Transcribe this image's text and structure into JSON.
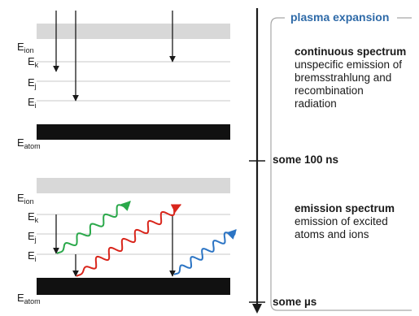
{
  "phase_title": "plasma expansion",
  "timeline": {
    "marker1": "some 100 ns",
    "marker2": "some µs"
  },
  "levels_top": {
    "ion": {
      "main": "E",
      "sub": "ion"
    },
    "k": {
      "main": "E",
      "sub": "k"
    },
    "j": {
      "main": "E",
      "sub": "j"
    },
    "i": {
      "main": "E",
      "sub": "i"
    },
    "atom": {
      "main": "E",
      "sub": "atom"
    }
  },
  "levels_bottom": {
    "ion": {
      "main": "E",
      "sub": "ion"
    },
    "k": {
      "main": "E",
      "sub": "k"
    },
    "j": {
      "main": "E",
      "sub": "j"
    },
    "i": {
      "main": "E",
      "sub": "i"
    },
    "atom": {
      "main": "E",
      "sub": "atom"
    }
  },
  "continuous": {
    "title": "continuous spectrum",
    "lines": [
      "unspecific emission of",
      "bremsstrahlung and",
      "recombination",
      "radiation"
    ]
  },
  "emission": {
    "title": "emission spectrum",
    "lines": [
      "emission  of excited",
      "atoms and ions"
    ]
  },
  "colors": {
    "wave_green": "#2aa84a",
    "wave_red": "#d9261c",
    "wave_blue": "#2b74c4",
    "accent_blue": "#2e6aa8",
    "band_gray": "#d8d8d8",
    "band_black": "#111111"
  }
}
